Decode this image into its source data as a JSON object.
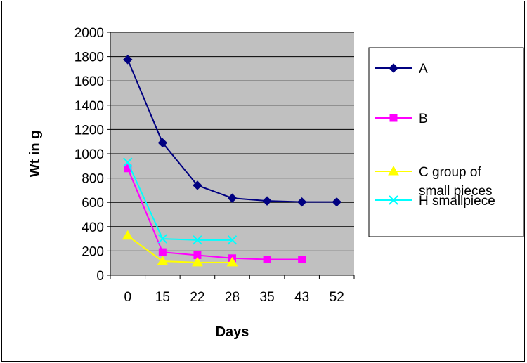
{
  "chart_data": {
    "type": "line",
    "title": "",
    "xlabel": "Days",
    "ylabel": "Wt in g",
    "categories": [
      "0",
      "15",
      "22",
      "28",
      "35",
      "43",
      "52"
    ],
    "ylim": [
      0,
      2000
    ],
    "ytick_step": 200,
    "grid": "horizontal",
    "plot_background": "#c0c0c0",
    "legend_position": "right",
    "series": [
      {
        "name": "A",
        "values": [
          1775,
          1090,
          740,
          635,
          612,
          603,
          603
        ],
        "color": "#000080",
        "marker": "diamond"
      },
      {
        "name": "B",
        "values": [
          880,
          190,
          165,
          140,
          130,
          130,
          null
        ],
        "color": "#ff00ff",
        "marker": "square"
      },
      {
        "name": "C group of small pieces",
        "legend_lines": [
          "C group of",
          "small pieces"
        ],
        "values": [
          325,
          115,
          105,
          105,
          null,
          null,
          null
        ],
        "color": "#ffff00",
        "marker": "triangle"
      },
      {
        "name": "H smallpiece",
        "values": [
          930,
          300,
          290,
          290,
          null,
          null,
          null
        ],
        "color": "#00ffff",
        "marker": "x"
      }
    ]
  }
}
